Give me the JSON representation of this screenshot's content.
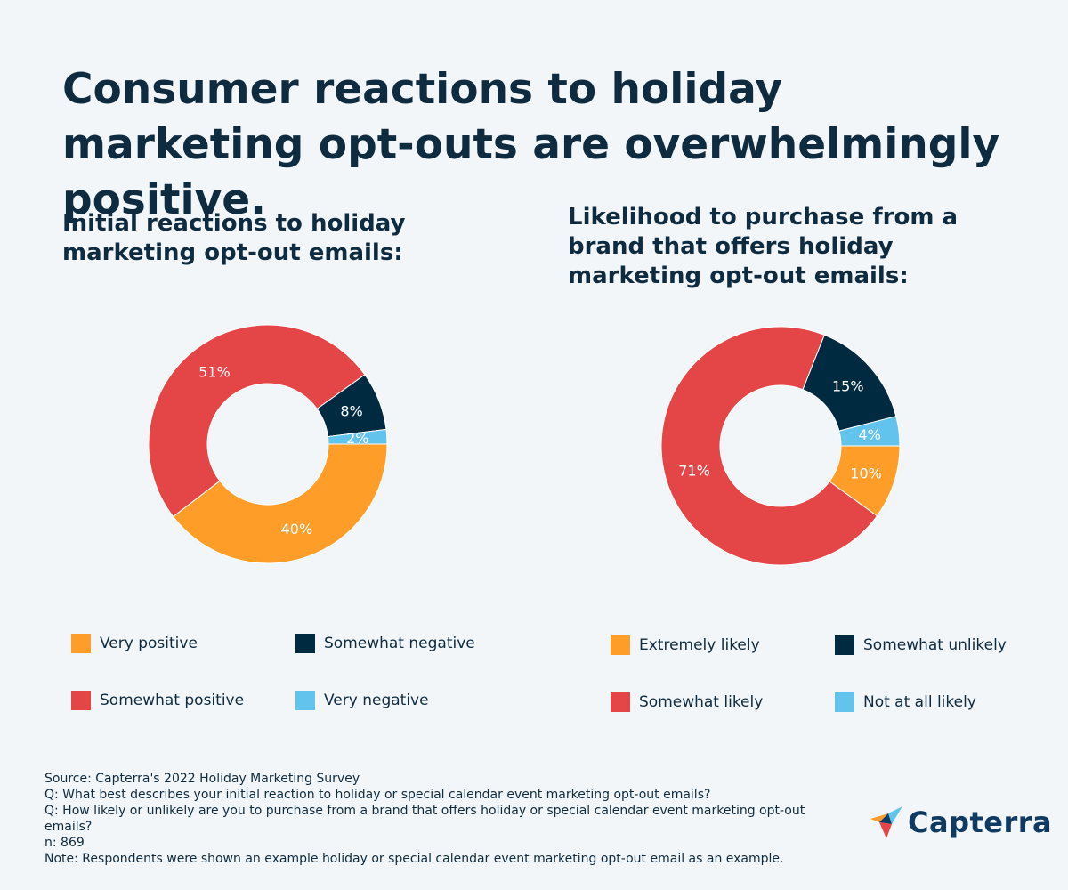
{
  "title": "Consumer reactions to holiday marketing opt-outs are overwhelmingly positive.",
  "colors": {
    "orange": "#ff9d29",
    "red": "#e44547",
    "navy": "#002a40",
    "light_blue": "#62c3ec",
    "text": "#0f2b40"
  },
  "chart_data": [
    {
      "type": "pie",
      "title": "Initial reactions to holiday marketing opt-out emails:",
      "categories": [
        "Very positive",
        "Somewhat positive",
        "Somewhat negative",
        "Very negative"
      ],
      "values": [
        40,
        51,
        8,
        2
      ],
      "labels": [
        "40%",
        "51%",
        "8%",
        "2%"
      ],
      "colors": [
        "#ff9d29",
        "#e44547",
        "#002a40",
        "#62c3ec"
      ],
      "legend_placement": "bottom",
      "legend_order": [
        0,
        2,
        1,
        3
      ]
    },
    {
      "type": "pie",
      "title": "Likelihood to purchase from a brand that offers holiday marketing opt-out emails:",
      "categories": [
        "Extremely likely",
        "Somewhat likely",
        "Somewhat unlikely",
        "Not at all likely"
      ],
      "values": [
        10,
        71,
        15,
        4
      ],
      "labels": [
        "10%",
        "71%",
        "15%",
        "4%"
      ],
      "colors": [
        "#ff9d29",
        "#e44547",
        "#002a40",
        "#62c3ec"
      ],
      "legend_placement": "bottom",
      "legend_order": [
        0,
        2,
        1,
        3
      ]
    }
  ],
  "footnotes": [
    "Source: Capterra's 2022 Holiday Marketing Survey",
    "Q: What best describes your initial reaction to holiday or special calendar event marketing opt-out emails?",
    "Q: How likely or unlikely are you to purchase from a brand that offers holiday or special calendar event marketing opt-out emails?",
    "n: 869",
    "Note: Respondents were shown an example holiday or special calendar event marketing opt-out email as an example."
  ],
  "logo": {
    "text": "Capterra",
    "icon": "capterra-arrow-icon"
  }
}
